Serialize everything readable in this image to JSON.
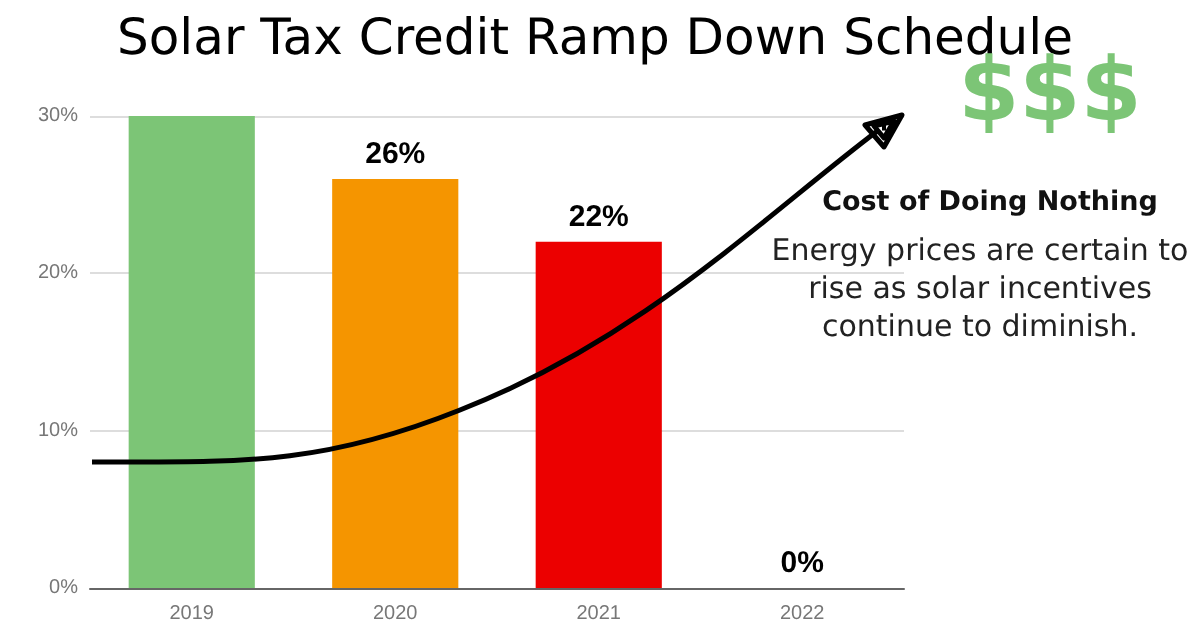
{
  "chart_data": {
    "type": "bar",
    "title": "Solar Tax Credit Ramp Down Schedule",
    "categories": [
      "2019",
      "2020",
      "2021",
      "2022"
    ],
    "values": [
      30,
      26,
      22,
      0
    ],
    "colors": [
      "#7cc576",
      "#f59500",
      "#ec0000",
      "#7cc576"
    ],
    "value_labels": [
      null,
      "26%",
      "22%",
      "0%"
    ],
    "ylim": [
      0,
      30
    ],
    "yticks": [
      {
        "value": 0,
        "label": "0%"
      },
      {
        "value": 10,
        "label": "10%"
      },
      {
        "value": 20,
        "label": "20%"
      },
      {
        "value": 30,
        "label": "30%"
      }
    ],
    "grid": "y",
    "annotations": [
      "$$$",
      "Cost of Doing Nothing",
      "Energy prices are certain to rise as solar incentives continue to diminish."
    ]
  }
}
